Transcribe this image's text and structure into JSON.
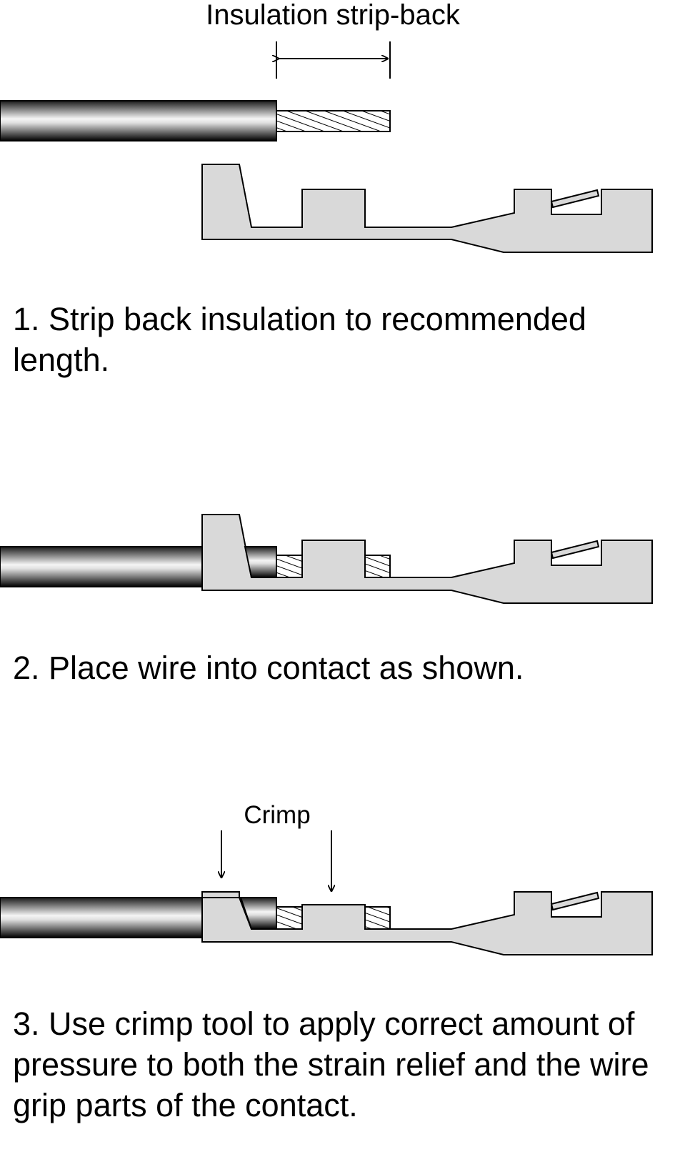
{
  "labels": {
    "strip_back": "Insulation strip-back",
    "crimp": "Crimp"
  },
  "steps": [
    "1. Strip back insulation to recommended length.",
    "2. Place wire into contact as shown.",
    "3. Use crimp tool to apply correct amount of pressure to both the strain relief and the wire grip parts of the contact."
  ],
  "colors": {
    "contact_fill": "#d9d9d9",
    "outline": "#000000",
    "insulation_dark": "#000000",
    "insulation_light": "#f2f2f2"
  }
}
